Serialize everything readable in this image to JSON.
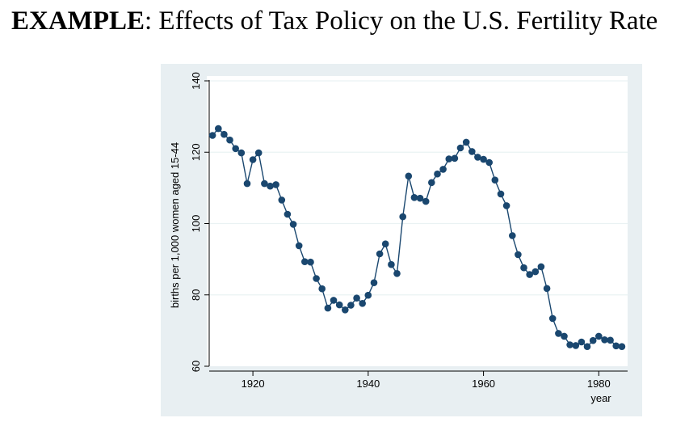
{
  "header": {
    "title_bold": "EXAMPLE",
    "title_rest": ": Effects of Tax Policy on the U.S. Fertility Rate"
  },
  "colors": {
    "plot_region_bg": "#e8eff2",
    "plot_area_bg": "#ffffff",
    "series": "#1a476f",
    "grid": "#eaf2f3",
    "axis": "#000000"
  },
  "chart_data": {
    "type": "line",
    "title": "",
    "xlabel": "year",
    "ylabel": "births per 1,000 women aged 15-44",
    "xlim": [
      1912,
      1985
    ],
    "ylim": [
      60,
      140
    ],
    "x_ticks": [
      1920,
      1940,
      1960,
      1980
    ],
    "y_ticks": [
      60,
      80,
      100,
      120,
      140
    ],
    "grid": true,
    "markers": true,
    "x": [
      1913,
      1914,
      1915,
      1916,
      1917,
      1918,
      1919,
      1920,
      1921,
      1922,
      1923,
      1924,
      1925,
      1926,
      1927,
      1928,
      1929,
      1930,
      1931,
      1932,
      1933,
      1934,
      1935,
      1936,
      1937,
      1938,
      1939,
      1940,
      1941,
      1942,
      1943,
      1944,
      1945,
      1946,
      1947,
      1948,
      1949,
      1950,
      1951,
      1952,
      1953,
      1954,
      1955,
      1956,
      1957,
      1958,
      1959,
      1960,
      1961,
      1962,
      1963,
      1964,
      1965,
      1966,
      1967,
      1968,
      1969,
      1970,
      1971,
      1972,
      1973,
      1974,
      1975,
      1976,
      1977,
      1978,
      1979,
      1980,
      1981,
      1982,
      1983,
      1984
    ],
    "y": [
      124.7,
      126.6,
      125.0,
      123.4,
      121.0,
      119.8,
      111.2,
      117.9,
      119.8,
      111.2,
      110.5,
      110.9,
      106.6,
      102.6,
      99.8,
      93.8,
      89.3,
      89.2,
      84.6,
      81.7,
      76.3,
      78.5,
      77.2,
      75.8,
      77.1,
      79.1,
      77.6,
      79.9,
      83.4,
      91.5,
      94.3,
      88.5,
      86.0,
      101.9,
      113.3,
      107.3,
      107.1,
      106.2,
      111.5,
      113.9,
      115.2,
      118.1,
      118.3,
      121.2,
      122.8,
      120.2,
      118.6,
      118.0,
      117.1,
      112.2,
      108.3,
      105.0,
      96.6,
      91.3,
      87.6,
      85.7,
      86.5,
      87.9,
      81.8,
      73.4,
      69.2,
      68.4,
      66.0,
      65.8,
      66.8,
      65.5,
      67.2,
      68.4,
      67.4,
      67.3,
      65.7,
      65.5
    ]
  }
}
